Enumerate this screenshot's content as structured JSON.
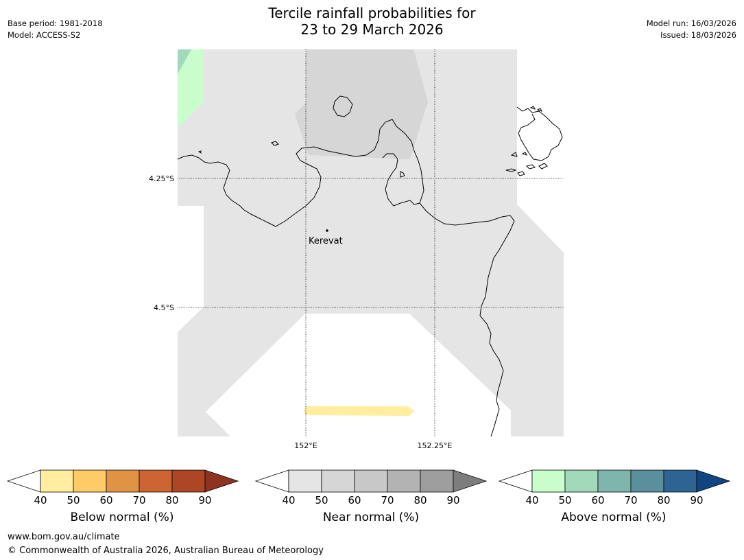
{
  "title": {
    "line1": "Tercile rainfall probabilities for",
    "line2": "23 to 29 March 2026"
  },
  "meta_left": {
    "base_period": "Base period: 1981-2018",
    "model": "Model: ACCESS-S2"
  },
  "meta_right": {
    "model_run": "Model run: 16/03/2026",
    "issued": "Issued: 18/03/2026"
  },
  "map": {
    "place_label": "Kerevat",
    "lat_labels": [
      "4.25°S",
      "4.5°S"
    ],
    "lon_labels": [
      "152°E",
      "152.25°E"
    ]
  },
  "colorbars": [
    {
      "label": "Below normal (%)",
      "ticks": [
        "40",
        "50",
        "60",
        "70",
        "80",
        "90"
      ],
      "colors": [
        "#ffeda0",
        "#fecb66",
        "#e09345",
        "#cc6533",
        "#ad4625",
        "#8e3222"
      ]
    },
    {
      "label": "Near normal (%)",
      "ticks": [
        "40",
        "50",
        "60",
        "70",
        "80",
        "90"
      ],
      "colors": [
        "#e5e5e5",
        "#d6d6d6",
        "#c8c8c8",
        "#b3b3b3",
        "#9e9e9e",
        "#7d7d7d"
      ]
    },
    {
      "label": "Above normal (%)",
      "ticks": [
        "40",
        "50",
        "60",
        "70",
        "80",
        "90"
      ],
      "colors": [
        "#c9fdcc",
        "#a3d9bb",
        "#7eb6ae",
        "#5a8f9d",
        "#2e6494",
        "#114581"
      ]
    }
  ],
  "footer": {
    "url": "www.bom.gov.au/climate",
    "copyright": "© Commonwealth of Australia 2026, Australian Bureau of Meteorology"
  }
}
